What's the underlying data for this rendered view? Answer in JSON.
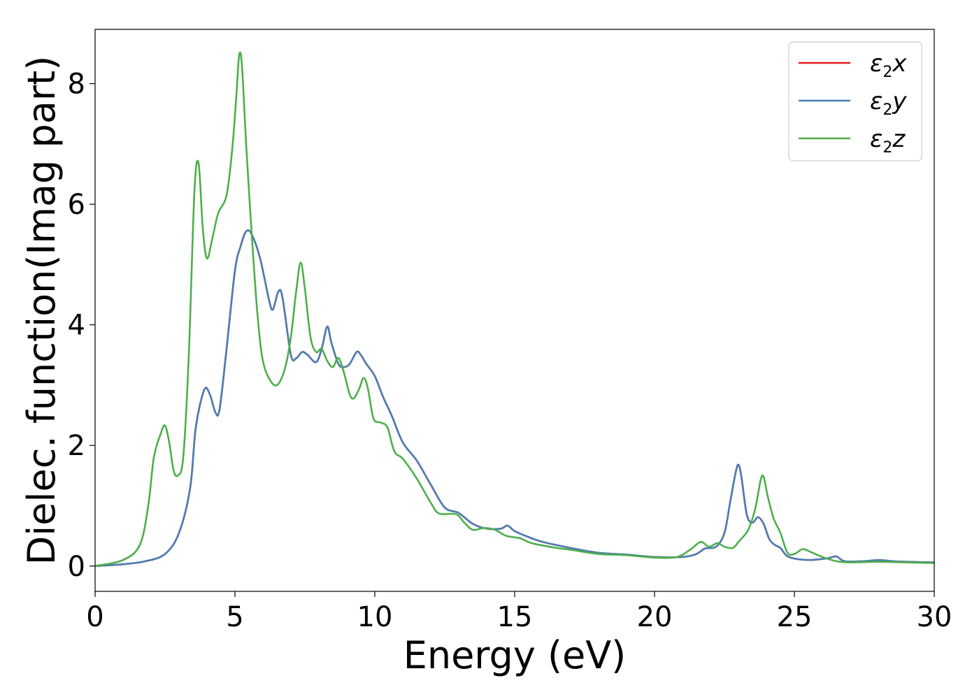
{
  "chart_data": {
    "type": "line",
    "xlabel": "Energy (eV)",
    "ylabel": "Dielec. function(Imag part)",
    "xlim": [
      0,
      30
    ],
    "ylim": [
      -0.42,
      8.9
    ],
    "xticks": [
      0,
      5,
      10,
      15,
      20,
      25,
      30
    ],
    "xtick_labels": [
      "0",
      "5",
      "10",
      "15",
      "20",
      "25",
      "30"
    ],
    "yticks": [
      0,
      2,
      4,
      6,
      8
    ],
    "ytick_labels": [
      "0",
      "2",
      "4",
      "6",
      "8"
    ],
    "grid": false,
    "legend_position": "top-right",
    "series": [
      {
        "name": "ε2x",
        "legend_symbol": "ε",
        "legend_sub": "2",
        "legend_var": "x",
        "color": "#e41a1c",
        "points": [
          [
            0,
            0
          ],
          [
            1,
            0.03
          ],
          [
            1.8,
            0.08
          ],
          [
            2.5,
            0.2
          ],
          [
            3.0,
            0.55
          ],
          [
            3.4,
            1.3
          ],
          [
            3.6,
            2.3
          ],
          [
            3.9,
            2.92
          ],
          [
            4.1,
            2.85
          ],
          [
            4.3,
            2.55
          ],
          [
            4.45,
            2.6
          ],
          [
            4.7,
            3.6
          ],
          [
            5.0,
            4.9
          ],
          [
            5.2,
            5.3
          ],
          [
            5.4,
            5.55
          ],
          [
            5.6,
            5.5
          ],
          [
            5.9,
            5.1
          ],
          [
            6.2,
            4.45
          ],
          [
            6.35,
            4.25
          ],
          [
            6.55,
            4.55
          ],
          [
            6.7,
            4.45
          ],
          [
            7.0,
            3.5
          ],
          [
            7.2,
            3.45
          ],
          [
            7.4,
            3.55
          ],
          [
            7.6,
            3.5
          ],
          [
            7.9,
            3.38
          ],
          [
            8.1,
            3.6
          ],
          [
            8.3,
            3.97
          ],
          [
            8.45,
            3.7
          ],
          [
            8.7,
            3.35
          ],
          [
            8.9,
            3.3
          ],
          [
            9.1,
            3.35
          ],
          [
            9.35,
            3.55
          ],
          [
            9.5,
            3.5
          ],
          [
            9.7,
            3.35
          ],
          [
            10.0,
            3.15
          ],
          [
            10.3,
            2.8
          ],
          [
            10.6,
            2.5
          ],
          [
            11.0,
            2.05
          ],
          [
            11.5,
            1.75
          ],
          [
            12.0,
            1.35
          ],
          [
            12.5,
            0.97
          ],
          [
            13.0,
            0.88
          ],
          [
            13.5,
            0.7
          ],
          [
            14.0,
            0.62
          ],
          [
            14.5,
            0.62
          ],
          [
            14.75,
            0.67
          ],
          [
            15.0,
            0.58
          ],
          [
            15.5,
            0.48
          ],
          [
            16.0,
            0.4
          ],
          [
            17.0,
            0.3
          ],
          [
            18.0,
            0.22
          ],
          [
            19.0,
            0.19
          ],
          [
            20.0,
            0.15
          ],
          [
            21.0,
            0.15
          ],
          [
            21.5,
            0.2
          ],
          [
            21.8,
            0.29
          ],
          [
            22.2,
            0.32
          ],
          [
            22.5,
            0.55
          ],
          [
            22.7,
            1.05
          ],
          [
            22.9,
            1.55
          ],
          [
            23.0,
            1.68
          ],
          [
            23.1,
            1.5
          ],
          [
            23.3,
            0.85
          ],
          [
            23.5,
            0.72
          ],
          [
            23.7,
            0.81
          ],
          [
            23.9,
            0.7
          ],
          [
            24.1,
            0.45
          ],
          [
            24.3,
            0.35
          ],
          [
            24.5,
            0.3
          ],
          [
            24.8,
            0.15
          ],
          [
            25.5,
            0.1
          ],
          [
            26.2,
            0.13
          ],
          [
            26.5,
            0.16
          ],
          [
            26.8,
            0.08
          ],
          [
            27.5,
            0.08
          ],
          [
            28.0,
            0.1
          ],
          [
            28.5,
            0.08
          ],
          [
            29.0,
            0.07
          ],
          [
            30,
            0.06
          ]
        ]
      },
      {
        "name": "ε2y",
        "legend_symbol": "ε",
        "legend_sub": "2",
        "legend_var": "y",
        "color": "#4a7fb5",
        "points": [
          [
            0,
            0
          ],
          [
            1,
            0.03
          ],
          [
            1.8,
            0.08
          ],
          [
            2.5,
            0.2
          ],
          [
            3.0,
            0.55
          ],
          [
            3.4,
            1.3
          ],
          [
            3.6,
            2.3
          ],
          [
            3.9,
            2.92
          ],
          [
            4.1,
            2.85
          ],
          [
            4.3,
            2.55
          ],
          [
            4.45,
            2.6
          ],
          [
            4.7,
            3.6
          ],
          [
            5.0,
            4.9
          ],
          [
            5.2,
            5.3
          ],
          [
            5.4,
            5.55
          ],
          [
            5.6,
            5.5
          ],
          [
            5.9,
            5.1
          ],
          [
            6.2,
            4.45
          ],
          [
            6.35,
            4.25
          ],
          [
            6.55,
            4.55
          ],
          [
            6.7,
            4.45
          ],
          [
            7.0,
            3.5
          ],
          [
            7.2,
            3.45
          ],
          [
            7.4,
            3.55
          ],
          [
            7.6,
            3.5
          ],
          [
            7.9,
            3.38
          ],
          [
            8.1,
            3.6
          ],
          [
            8.3,
            3.97
          ],
          [
            8.45,
            3.7
          ],
          [
            8.7,
            3.35
          ],
          [
            8.9,
            3.3
          ],
          [
            9.1,
            3.35
          ],
          [
            9.35,
            3.55
          ],
          [
            9.5,
            3.5
          ],
          [
            9.7,
            3.35
          ],
          [
            10.0,
            3.15
          ],
          [
            10.3,
            2.8
          ],
          [
            10.6,
            2.5
          ],
          [
            11.0,
            2.05
          ],
          [
            11.5,
            1.75
          ],
          [
            12.0,
            1.35
          ],
          [
            12.5,
            0.97
          ],
          [
            13.0,
            0.88
          ],
          [
            13.5,
            0.7
          ],
          [
            14.0,
            0.62
          ],
          [
            14.5,
            0.62
          ],
          [
            14.75,
            0.67
          ],
          [
            15.0,
            0.58
          ],
          [
            15.5,
            0.48
          ],
          [
            16.0,
            0.4
          ],
          [
            17.0,
            0.3
          ],
          [
            18.0,
            0.22
          ],
          [
            19.0,
            0.19
          ],
          [
            20.0,
            0.15
          ],
          [
            21.0,
            0.15
          ],
          [
            21.5,
            0.2
          ],
          [
            21.8,
            0.29
          ],
          [
            22.2,
            0.32
          ],
          [
            22.5,
            0.55
          ],
          [
            22.7,
            1.05
          ],
          [
            22.9,
            1.55
          ],
          [
            23.0,
            1.68
          ],
          [
            23.1,
            1.5
          ],
          [
            23.3,
            0.85
          ],
          [
            23.5,
            0.72
          ],
          [
            23.7,
            0.81
          ],
          [
            23.9,
            0.7
          ],
          [
            24.1,
            0.45
          ],
          [
            24.3,
            0.35
          ],
          [
            24.5,
            0.3
          ],
          [
            24.8,
            0.15
          ],
          [
            25.5,
            0.1
          ],
          [
            26.2,
            0.13
          ],
          [
            26.5,
            0.16
          ],
          [
            26.8,
            0.08
          ],
          [
            27.5,
            0.08
          ],
          [
            28.0,
            0.1
          ],
          [
            28.5,
            0.08
          ],
          [
            29.0,
            0.07
          ],
          [
            30,
            0.06
          ]
        ]
      },
      {
        "name": "ε2z",
        "legend_symbol": "ε",
        "legend_sub": "2",
        "legend_var": "z",
        "color": "#4daf4a",
        "points": [
          [
            0,
            0
          ],
          [
            1.0,
            0.1
          ],
          [
            1.6,
            0.35
          ],
          [
            1.9,
            1.0
          ],
          [
            2.1,
            1.8
          ],
          [
            2.35,
            2.2
          ],
          [
            2.5,
            2.33
          ],
          [
            2.65,
            2.05
          ],
          [
            2.8,
            1.6
          ],
          [
            2.95,
            1.5
          ],
          [
            3.15,
            1.8
          ],
          [
            3.35,
            3.5
          ],
          [
            3.55,
            6.2
          ],
          [
            3.7,
            6.68
          ],
          [
            3.85,
            5.6
          ],
          [
            4.0,
            5.1
          ],
          [
            4.2,
            5.45
          ],
          [
            4.4,
            5.85
          ],
          [
            4.7,
            6.15
          ],
          [
            4.9,
            6.9
          ],
          [
            5.05,
            7.8
          ],
          [
            5.15,
            8.47
          ],
          [
            5.25,
            8.3
          ],
          [
            5.4,
            7.0
          ],
          [
            5.6,
            5.5
          ],
          [
            5.8,
            4.2
          ],
          [
            6.0,
            3.4
          ],
          [
            6.3,
            3.05
          ],
          [
            6.55,
            3.02
          ],
          [
            6.8,
            3.3
          ],
          [
            7.0,
            3.8
          ],
          [
            7.2,
            4.6
          ],
          [
            7.35,
            5.03
          ],
          [
            7.5,
            4.6
          ],
          [
            7.7,
            3.8
          ],
          [
            7.9,
            3.55
          ],
          [
            8.1,
            3.6
          ],
          [
            8.3,
            3.4
          ],
          [
            8.5,
            3.3
          ],
          [
            8.7,
            3.45
          ],
          [
            8.9,
            3.2
          ],
          [
            9.1,
            2.85
          ],
          [
            9.25,
            2.78
          ],
          [
            9.45,
            2.95
          ],
          [
            9.6,
            3.12
          ],
          [
            9.75,
            2.95
          ],
          [
            9.95,
            2.45
          ],
          [
            10.2,
            2.38
          ],
          [
            10.45,
            2.3
          ],
          [
            10.7,
            1.9
          ],
          [
            11.0,
            1.78
          ],
          [
            11.5,
            1.45
          ],
          [
            12.0,
            1.05
          ],
          [
            12.3,
            0.87
          ],
          [
            12.9,
            0.86
          ],
          [
            13.2,
            0.72
          ],
          [
            13.5,
            0.6
          ],
          [
            13.9,
            0.63
          ],
          [
            14.3,
            0.6
          ],
          [
            14.7,
            0.5
          ],
          [
            15.2,
            0.46
          ],
          [
            15.6,
            0.38
          ],
          [
            16.5,
            0.3
          ],
          [
            17.0,
            0.27
          ],
          [
            18.0,
            0.2
          ],
          [
            19.0,
            0.18
          ],
          [
            20.0,
            0.14
          ],
          [
            20.8,
            0.15
          ],
          [
            21.3,
            0.28
          ],
          [
            21.65,
            0.4
          ],
          [
            21.95,
            0.32
          ],
          [
            22.25,
            0.38
          ],
          [
            22.5,
            0.32
          ],
          [
            22.8,
            0.3
          ],
          [
            23.0,
            0.4
          ],
          [
            23.35,
            0.6
          ],
          [
            23.6,
            0.95
          ],
          [
            23.85,
            1.5
          ],
          [
            24.05,
            1.15
          ],
          [
            24.25,
            0.8
          ],
          [
            24.5,
            0.55
          ],
          [
            24.75,
            0.22
          ],
          [
            25.0,
            0.2
          ],
          [
            25.3,
            0.28
          ],
          [
            25.6,
            0.23
          ],
          [
            26.0,
            0.15
          ],
          [
            26.5,
            0.08
          ],
          [
            27.0,
            0.06
          ],
          [
            28.0,
            0.07
          ],
          [
            29.0,
            0.06
          ],
          [
            30,
            0.05
          ]
        ]
      }
    ]
  }
}
